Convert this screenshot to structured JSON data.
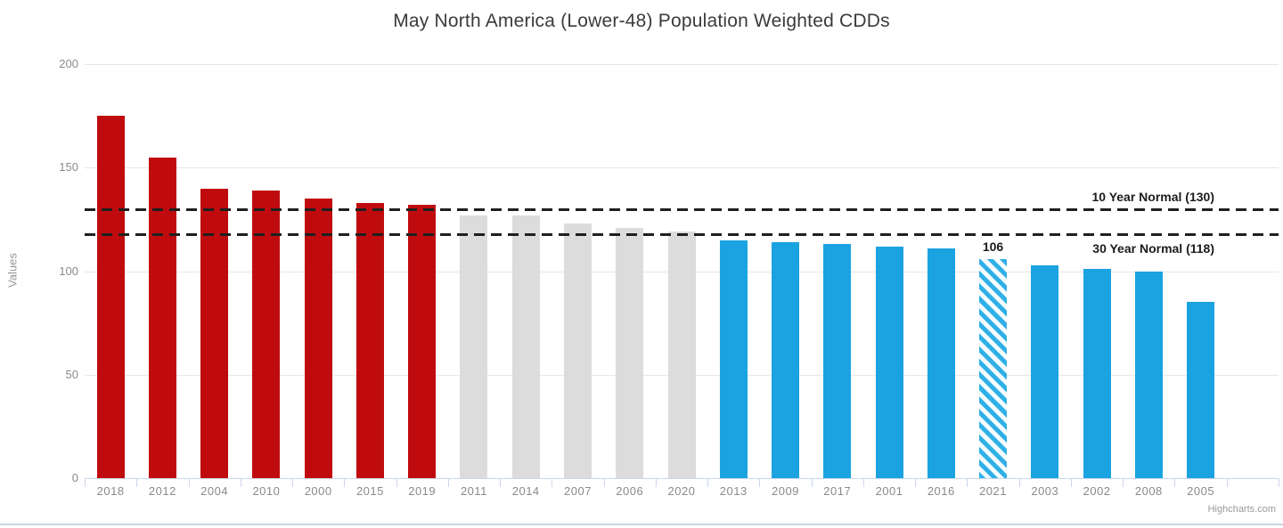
{
  "credits": {
    "label": "Highcharts.com"
  },
  "chart_data": {
    "type": "bar",
    "title": "May North America (Lower-48) Population Weighted CDDs",
    "xlabel": "",
    "ylabel": "Values",
    "ylim": [
      0,
      200
    ],
    "yticks": [
      0,
      50,
      100,
      150,
      200
    ],
    "grid": "on",
    "legend": "off",
    "categories": [
      "2018",
      "2012",
      "2004",
      "2010",
      "2000",
      "2015",
      "2019",
      "2011",
      "2014",
      "2007",
      "2006",
      "2020",
      "2013",
      "2009",
      "2017",
      "2001",
      "2016",
      "2021",
      "2003",
      "2002",
      "2008",
      "2005"
    ],
    "values": [
      175,
      155,
      140,
      139,
      135,
      133,
      132,
      127,
      127,
      123,
      121,
      119,
      115,
      114,
      113,
      112,
      111,
      106,
      103,
      101,
      100,
      85
    ],
    "point_styles": [
      "red",
      "red",
      "red",
      "red",
      "red",
      "red",
      "red",
      "gray",
      "gray",
      "gray",
      "gray",
      "gray",
      "blue",
      "blue",
      "blue",
      "blue",
      "blue",
      "hatch",
      "blue",
      "blue",
      "blue",
      "blue"
    ],
    "colors": {
      "red": "#c00b0e",
      "gray": "#dcdcdc",
      "blue": "#1aa3e0",
      "hatch_stripe": "#2fb0e6",
      "hatch_bg": "#f4fbfe",
      "grid": "#e6e6e6",
      "dashed_line": "#1f1f1f"
    },
    "plot_lines": [
      {
        "value": 130,
        "label": "10 Year Normal (130)",
        "label_side": "above"
      },
      {
        "value": 118,
        "label": "30 Year Normal (118)",
        "label_side": "below"
      }
    ],
    "data_labels": [
      {
        "category": "2021",
        "text": "106"
      }
    ]
  }
}
